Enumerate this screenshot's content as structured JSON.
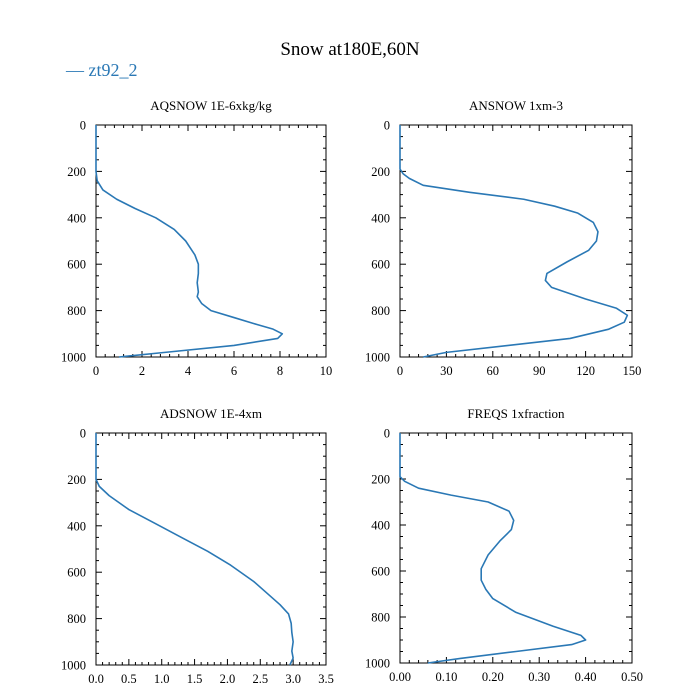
{
  "figure": {
    "title": "Snow at180E,60N",
    "legend": {
      "label": "— zt92_2",
      "color": "#2a78b5"
    }
  },
  "chart_data": [
    {
      "type": "line",
      "title": "AQSNOW  1E-6xkg/kg",
      "xlim": [
        0,
        10
      ],
      "ylim": [
        1000,
        0
      ],
      "xticks": [
        0,
        2,
        4,
        6,
        8,
        10
      ],
      "xtick_labels": [
        "0",
        "2",
        "4",
        "6",
        "8",
        "10"
      ],
      "yticks": [
        0,
        200,
        400,
        600,
        800,
        1000
      ],
      "ytick_labels": [
        "0",
        "200",
        "400",
        "600",
        "800",
        "1000"
      ],
      "series": [
        {
          "color": "#2a78b5",
          "x": [
            0,
            0,
            0.05,
            0.3,
            0.9,
            1.7,
            2.6,
            3.4,
            3.9,
            4.3,
            4.45,
            4.45,
            4.4,
            4.45,
            4.4,
            4.6,
            5.0,
            6.0,
            7.0,
            7.7,
            8.1,
            7.9,
            6.0,
            3.0,
            1.0
          ],
          "y": [
            0,
            200,
            240,
            280,
            320,
            360,
            400,
            450,
            500,
            560,
            600,
            640,
            680,
            720,
            740,
            770,
            800,
            830,
            860,
            880,
            900,
            920,
            950,
            980,
            1000
          ]
        }
      ]
    },
    {
      "type": "line",
      "title": "ANSNOW  1xm-3",
      "xlim": [
        0,
        150
      ],
      "ylim": [
        1000,
        0
      ],
      "xticks": [
        0,
        30,
        60,
        90,
        120,
        150
      ],
      "xtick_labels": [
        "0",
        "30",
        "60",
        "90",
        "120",
        "150"
      ],
      "yticks": [
        0,
        200,
        400,
        600,
        800,
        1000
      ],
      "ytick_labels": [
        "0",
        "200",
        "400",
        "600",
        "800",
        "1000"
      ],
      "series": [
        {
          "color": "#2a78b5",
          "x": [
            0,
            0,
            2,
            6,
            15,
            45,
            80,
            100,
            115,
            125,
            128,
            127,
            122,
            108,
            95,
            94,
            98,
            120,
            140,
            147,
            145,
            135,
            110,
            70,
            30,
            15
          ],
          "y": [
            0,
            190,
            210,
            230,
            260,
            290,
            320,
            350,
            380,
            420,
            460,
            500,
            540,
            590,
            640,
            670,
            700,
            750,
            790,
            820,
            850,
            880,
            920,
            950,
            980,
            1000
          ]
        }
      ]
    },
    {
      "type": "line",
      "title": "ADSNOW  1E-4xm",
      "xlim": [
        0,
        3.5
      ],
      "ylim": [
        1000,
        0
      ],
      "xticks": [
        0,
        0.5,
        1.0,
        1.5,
        2.0,
        2.5,
        3.0,
        3.5
      ],
      "xtick_labels": [
        "0.0",
        "0.5",
        "1.0",
        "1.5",
        "2.0",
        "2.5",
        "3.0",
        "3.5"
      ],
      "yticks": [
        0,
        200,
        400,
        600,
        800,
        1000
      ],
      "ytick_labels": [
        "0",
        "200",
        "400",
        "600",
        "800",
        "1000"
      ],
      "series": [
        {
          "color": "#2a78b5",
          "x": [
            0,
            0,
            0.05,
            0.2,
            0.5,
            0.9,
            1.3,
            1.7,
            2.05,
            2.4,
            2.6,
            2.8,
            2.93,
            2.97,
            2.98,
            3.0,
            2.98,
            3.0,
            2.95
          ],
          "y": [
            0,
            200,
            230,
            270,
            330,
            390,
            450,
            510,
            570,
            640,
            690,
            740,
            780,
            820,
            860,
            900,
            940,
            970,
            1000
          ]
        }
      ]
    },
    {
      "type": "line",
      "title": "FREQS  1xfraction",
      "xlim": [
        0,
        0.5
      ],
      "ylim": [
        1000,
        0
      ],
      "xticks": [
        0,
        0.1,
        0.2,
        0.3,
        0.4,
        0.5
      ],
      "xtick_labels": [
        "0.00",
        "0.10",
        "0.20",
        "0.30",
        "0.40",
        "0.50"
      ],
      "yticks": [
        0,
        200,
        400,
        600,
        800,
        1000
      ],
      "ytick_labels": [
        "0",
        "200",
        "400",
        "600",
        "800",
        "1000"
      ],
      "series": [
        {
          "color": "#2a78b5",
          "x": [
            0,
            0,
            0.01,
            0.04,
            0.11,
            0.19,
            0.235,
            0.245,
            0.24,
            0.215,
            0.19,
            0.175,
            0.175,
            0.185,
            0.2,
            0.25,
            0.33,
            0.39,
            0.4,
            0.37,
            0.25,
            0.13,
            0.06
          ],
          "y": [
            0,
            190,
            210,
            240,
            270,
            300,
            340,
            380,
            420,
            470,
            530,
            590,
            640,
            680,
            720,
            780,
            840,
            880,
            900,
            920,
            950,
            980,
            1000
          ]
        }
      ]
    }
  ]
}
